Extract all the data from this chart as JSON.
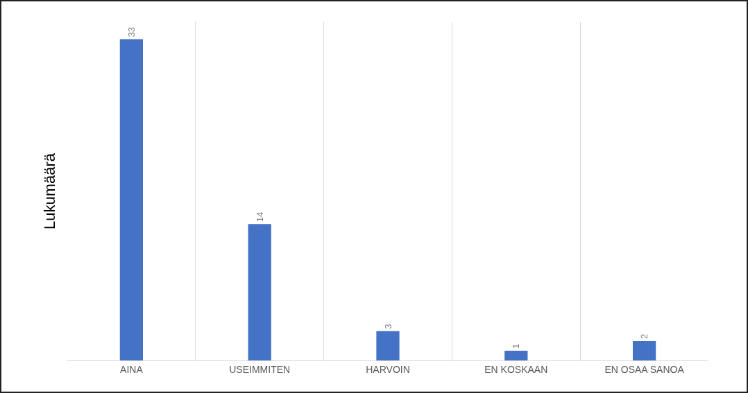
{
  "chart_data": {
    "type": "bar",
    "ylabel": "Lukumäärä",
    "categories": [
      "AINA",
      "USEIMMITEN",
      "HARVOIN",
      "EN KOSKAAN",
      "EN OSAA SANOA"
    ],
    "values": [
      33,
      14,
      3,
      1,
      2
    ],
    "color": "#4472c4",
    "data_labels": true,
    "relative": false,
    "grid": "x",
    "legend": false
  }
}
